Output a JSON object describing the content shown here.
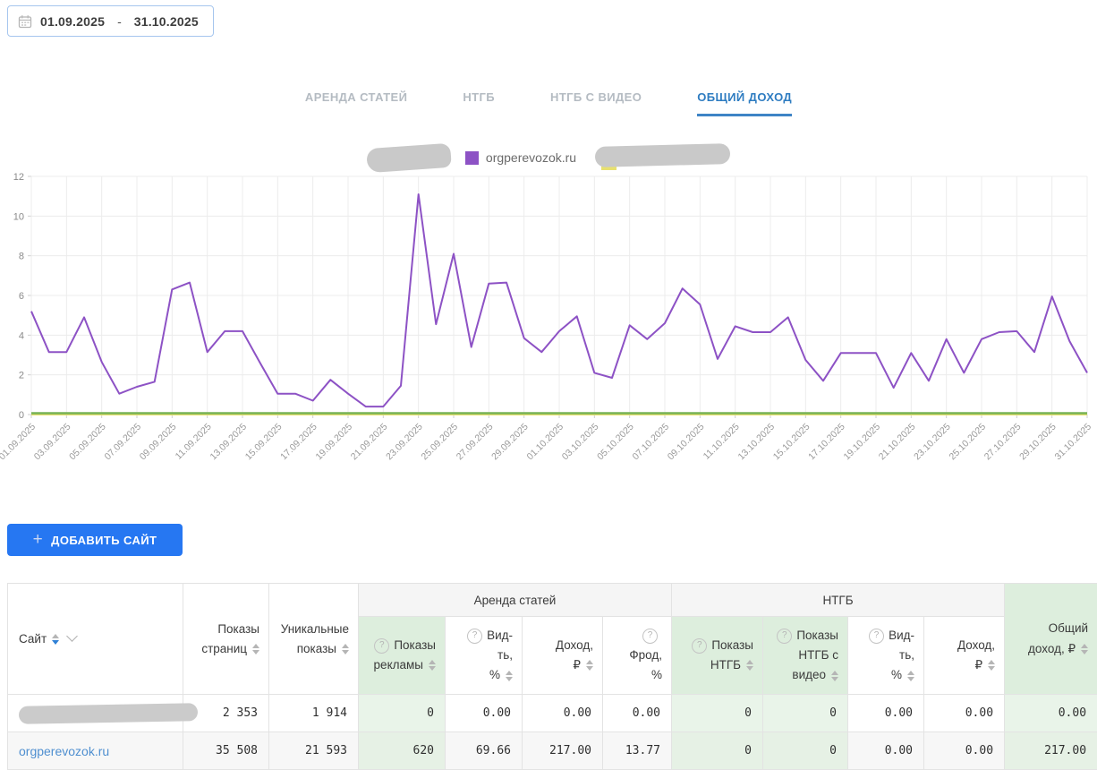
{
  "datepicker": {
    "start": "01.09.2025",
    "separator": "-",
    "end": "31.10.2025"
  },
  "tabs": {
    "items": [
      {
        "name": "arenda-statey",
        "label": "АРЕНДА СТАТЕЙ",
        "active": false
      },
      {
        "name": "ntgb",
        "label": "НТГБ",
        "active": false
      },
      {
        "name": "ntgb-s-video",
        "label": "НТГБ С ВИДЕО",
        "active": false
      },
      {
        "name": "obshchiy-dokhod",
        "label": "ОБЩИЙ ДОХОД",
        "active": true
      }
    ]
  },
  "legend": {
    "items": [
      {
        "type": "redacted"
      },
      {
        "type": "series",
        "swatch": "#8d52c5",
        "label": "orgperevozok.ru"
      },
      {
        "type": "series-redacted",
        "swatch": "#e8e170"
      }
    ]
  },
  "colors": {
    "accent_blue": "#2e7cc1",
    "button_blue": "#2677f2",
    "link_blue": "#4f8fd0",
    "purple_series": "#8d52c5",
    "green_series": "#77b255",
    "yellow_series": "#e8e170",
    "green_cell": "#e9f4e9",
    "green_header": "#ddeedd",
    "redaction_gray": "#c9c9c9"
  },
  "button": {
    "plus": "+",
    "add_site": "ДОБАВИТЬ САЙТ"
  },
  "chart_data": {
    "type": "line",
    "title": "",
    "xlabel": "",
    "ylabel": "",
    "ylim": [
      0,
      12
    ],
    "yticks": [
      0,
      2,
      4,
      6,
      8,
      10,
      12
    ],
    "x_tick_every": 2,
    "grid": true,
    "legend_position": "top-center",
    "x": [
      "01.09.2025",
      "02.09.2025",
      "03.09.2025",
      "04.09.2025",
      "05.09.2025",
      "06.09.2025",
      "07.09.2025",
      "08.09.2025",
      "09.09.2025",
      "10.09.2025",
      "11.09.2025",
      "12.09.2025",
      "13.09.2025",
      "14.09.2025",
      "15.09.2025",
      "16.09.2025",
      "17.09.2025",
      "18.09.2025",
      "19.09.2025",
      "20.09.2025",
      "21.09.2025",
      "22.09.2025",
      "23.09.2025",
      "24.09.2025",
      "25.09.2025",
      "26.09.2025",
      "27.09.2025",
      "28.09.2025",
      "29.09.2025",
      "30.09.2025",
      "01.10.2025",
      "02.10.2025",
      "03.10.2025",
      "04.10.2025",
      "05.10.2025",
      "06.10.2025",
      "07.10.2025",
      "08.10.2025",
      "09.10.2025",
      "10.10.2025",
      "11.10.2025",
      "12.10.2025",
      "13.10.2025",
      "14.10.2025",
      "15.10.2025",
      "16.10.2025",
      "17.10.2025",
      "18.10.2025",
      "19.10.2025",
      "20.10.2025",
      "21.10.2025",
      "22.10.2025",
      "23.10.2025",
      "24.10.2025",
      "25.10.2025",
      "26.10.2025",
      "27.10.2025",
      "28.10.2025",
      "29.10.2025",
      "30.10.2025",
      "31.10.2025"
    ],
    "series": [
      {
        "name": "redacted-site-green",
        "color": "#77b255",
        "values": [
          0,
          0,
          0,
          0,
          0,
          0,
          0,
          0,
          0,
          0,
          0,
          0,
          0,
          0,
          0,
          0,
          0,
          0,
          0,
          0,
          0,
          0,
          0,
          0,
          0,
          0,
          0,
          0,
          0,
          0,
          0,
          0,
          0,
          0,
          0,
          0,
          0,
          0,
          0,
          0,
          0,
          0,
          0,
          0,
          0,
          0,
          0,
          0,
          0,
          0,
          0,
          0,
          0,
          0,
          0,
          0,
          0,
          0,
          0,
          0,
          0
        ]
      },
      {
        "name": "orgperevozok.ru",
        "color": "#8d52c5",
        "values": [
          5.2,
          3.15,
          3.15,
          4.9,
          2.65,
          1.05,
          1.4,
          1.65,
          6.3,
          6.65,
          3.15,
          4.2,
          4.2,
          2.6,
          1.05,
          1.05,
          0.7,
          1.75,
          1.05,
          0.4,
          0.4,
          1.45,
          11.1,
          4.55,
          8.1,
          3.4,
          6.6,
          6.65,
          3.85,
          3.15,
          4.2,
          4.95,
          2.1,
          1.85,
          4.5,
          3.8,
          4.6,
          6.35,
          5.55,
          2.8,
          4.45,
          4.15,
          4.15,
          4.9,
          2.75,
          1.7,
          3.1,
          3.1,
          3.1,
          1.35,
          3.1,
          1.7,
          3.8,
          2.1,
          3.8,
          4.15,
          4.2,
          3.15,
          5.95,
          3.7,
          2.1
        ]
      },
      {
        "name": "redacted-site-yellow",
        "color": "#e8e170",
        "values": [
          0,
          0,
          0,
          0,
          0,
          0,
          0,
          0,
          0,
          0,
          0,
          0,
          0,
          0,
          0,
          0,
          0,
          0,
          0,
          0,
          0,
          0,
          0,
          0,
          0,
          0,
          0,
          0,
          0,
          0,
          0,
          0,
          0,
          0,
          0,
          0,
          0,
          0,
          0,
          0,
          0,
          0,
          0,
          0,
          0,
          0,
          0,
          0,
          0,
          0,
          0,
          0,
          0,
          0,
          0,
          0,
          0,
          0,
          0,
          0,
          0
        ]
      }
    ]
  },
  "table": {
    "site_column": {
      "label": "Сайт"
    },
    "plain_columns": [
      {
        "label": "Показы страниц",
        "lines": [
          "Показы",
          "страниц"
        ],
        "sort": true
      },
      {
        "label": "Уникальные показы",
        "lines": [
          "Уникальные",
          "показы"
        ],
        "sort": true
      }
    ],
    "groups": [
      {
        "label": "Аренда статей",
        "columns": [
          {
            "label": "Показы рекламы",
            "lines": [
              "Показы",
              "рекламы"
            ],
            "help": true,
            "sort": true,
            "green": true
          },
          {
            "label": "Вид-ть, %",
            "lines": [
              "Вид-ть,",
              "%"
            ],
            "help": true,
            "sort": true,
            "green": false
          },
          {
            "label": "Доход, ₽",
            "lines": [
              "Доход,",
              "₽"
            ],
            "help": false,
            "sort": true,
            "green": false
          },
          {
            "label": "Фрод, %",
            "lines": [
              "Фрод,",
              "%"
            ],
            "help": true,
            "sort": false,
            "green": false
          }
        ]
      },
      {
        "label": "НТГБ",
        "columns": [
          {
            "label": "Показы НТГБ",
            "lines": [
              "Показы",
              "НТГБ"
            ],
            "help": true,
            "sort": true,
            "green": true
          },
          {
            "label": "Показы НТГБ с видео",
            "lines": [
              "Показы",
              "НТГБ с",
              "видео"
            ],
            "help": true,
            "sort": true,
            "green": true
          },
          {
            "label": "Вид-ть, %",
            "lines": [
              "Вид-ть,",
              "%"
            ],
            "help": true,
            "sort": true,
            "green": false
          },
          {
            "label": "Доход, ₽",
            "lines": [
              "Доход,",
              "₽"
            ],
            "help": false,
            "sort": true,
            "green": false
          }
        ]
      }
    ],
    "total_column": {
      "label": "Общий доход, ₽",
      "lines": [
        "Общий",
        "доход, ₽"
      ],
      "sort": true,
      "green": true
    },
    "rows": [
      {
        "site": {
          "redacted": true
        },
        "values": [
          "2 353",
          "1 914",
          "0",
          "0.00",
          "0.00",
          "0.00",
          "0",
          "0",
          "0.00",
          "0.00",
          "0.00"
        ]
      },
      {
        "site": {
          "label": "orgperevozok.ru",
          "link": true
        },
        "values": [
          "35 508",
          "21 593",
          "620",
          "69.66",
          "217.00",
          "13.77",
          "0",
          "0",
          "0.00",
          "0.00",
          "217.00"
        ]
      }
    ]
  }
}
